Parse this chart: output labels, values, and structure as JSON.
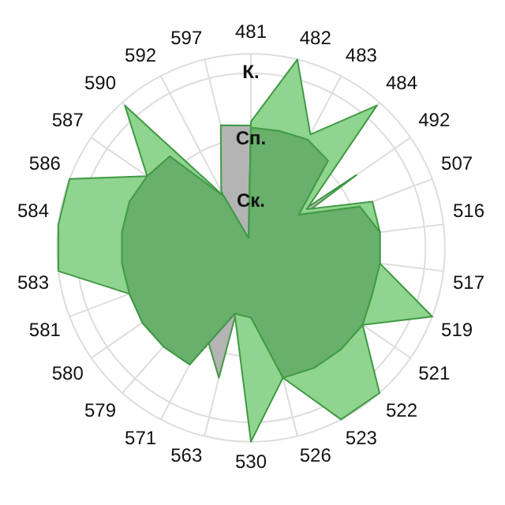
{
  "chart_data": {
    "type": "radar",
    "categories": [
      "481",
      "482",
      "483",
      "484",
      "492",
      "507",
      "516",
      "517",
      "519",
      "521",
      "522",
      "523",
      "526",
      "530",
      "563",
      "571",
      "579",
      "580",
      "581",
      "583",
      "584",
      "586",
      "587",
      "590",
      "592",
      "597"
    ],
    "ylim": [
      0,
      1
    ],
    "yticks": [
      {
        "value": 0.24,
        "label": "Ск."
      },
      {
        "value": 0.56,
        "label": "Сп."
      },
      {
        "value": 0.9,
        "label": "К."
      }
    ],
    "grid": true,
    "legend": false,
    "marker": "none",
    "series": [
      {
        "color": "#b4b4b4",
        "values": [
          0.63,
          0.05,
          0.05,
          0.05,
          0.66,
          0.1,
          0.05,
          0.05,
          0.05,
          0.05,
          0.05,
          0.05,
          0.05,
          0.05,
          0.69,
          0.5,
          0.05,
          0.05,
          0.05,
          0.05,
          0.05,
          0.05,
          0.05,
          0.05,
          0.33,
          0.65
        ]
      },
      {
        "color": "#8fd48f",
        "values": [
          0.65,
          1.0,
          0.66,
          0.98,
          0.35,
          0.67,
          0.67,
          0.67,
          1.0,
          0.7,
          1.0,
          1.0,
          0.69,
          1.0,
          0.35,
          0.68,
          0.68,
          0.68,
          0.67,
          1.0,
          1.0,
          1.0,
          0.65,
          0.98,
          0.3,
          0.05
        ]
      },
      {
        "color": "#68b06c",
        "values": [
          0.62,
          0.62,
          0.63,
          0.6,
          0.3,
          0.6,
          0.67,
          0.67,
          0.67,
          0.7,
          0.7,
          0.7,
          0.69,
          0.36,
          0.35,
          0.68,
          0.68,
          0.68,
          0.67,
          0.67,
          0.67,
          0.67,
          0.65,
          0.63,
          0.3,
          0.05
        ]
      }
    ]
  }
}
